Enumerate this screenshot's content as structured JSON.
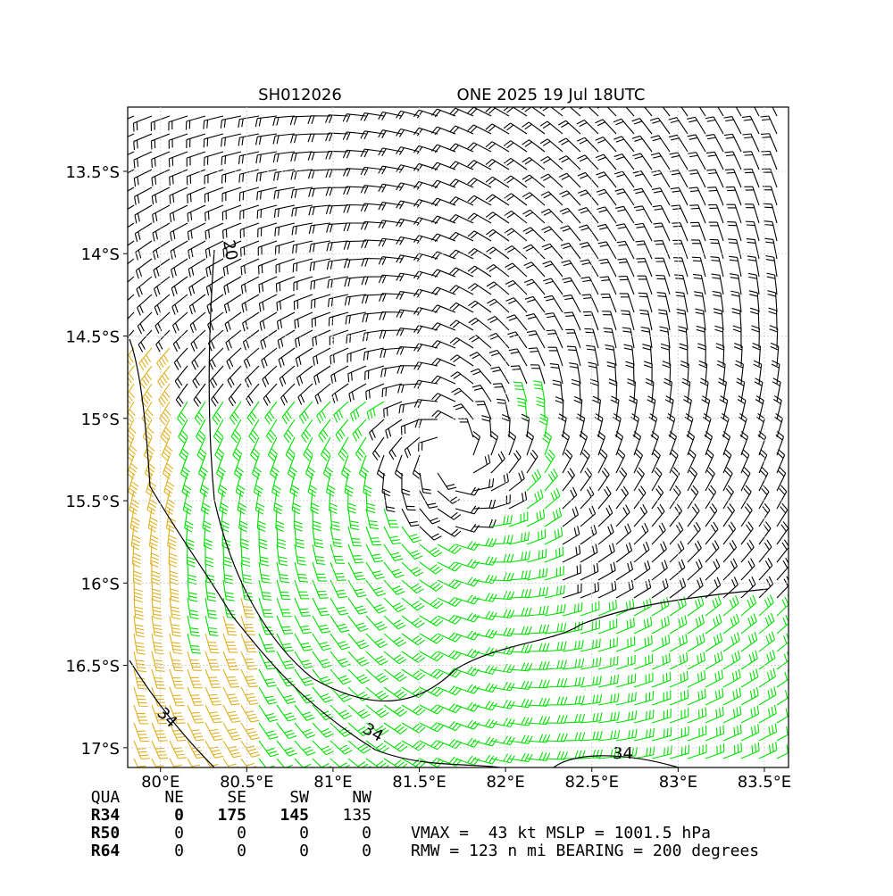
{
  "chart_data": {
    "type": "wind-barb-map",
    "title_left": "SH012026",
    "title_right": "ONE 2025 19 Jul 18UTC",
    "xlim": [
      79.81,
      83.64
    ],
    "ylim": [
      -17.12,
      -13.11
    ],
    "xticks": [
      {
        "value": 80,
        "label": "80°E"
      },
      {
        "value": 80.5,
        "label": "80.5°E"
      },
      {
        "value": 81,
        "label": "81°E"
      },
      {
        "value": 81.5,
        "label": "81.5°E"
      },
      {
        "value": 82,
        "label": "82°E"
      },
      {
        "value": 82.5,
        "label": "82.5°E"
      },
      {
        "value": 83,
        "label": "83°E"
      },
      {
        "value": 83.5,
        "label": "83.5°E"
      }
    ],
    "yticks": [
      {
        "value": -13.5,
        "label": "13.5°S"
      },
      {
        "value": -14,
        "label": "14°S"
      },
      {
        "value": -14.5,
        "label": "14.5°S"
      },
      {
        "value": -15,
        "label": "15°S"
      },
      {
        "value": -15.5,
        "label": "15.5°S"
      },
      {
        "value": -16,
        "label": "16°S"
      },
      {
        "value": -16.5,
        "label": "16.5°S"
      },
      {
        "value": -17,
        "label": "17°S"
      }
    ],
    "grid": true,
    "contour_labels": [
      "20",
      "34",
      "34",
      "34"
    ],
    "colors": {
      "weak": "#000000",
      "gale": "#00e000",
      "storm": "#e0b020"
    },
    "table": {
      "header": [
        "QUA",
        "NE",
        "SE",
        "SW",
        "NW"
      ],
      "rows": [
        [
          "R34",
          "0",
          "175",
          "145",
          "135"
        ],
        [
          "R50",
          "0",
          "0",
          "0",
          "0"
        ],
        [
          "R64",
          "0",
          "0",
          "0",
          "0"
        ]
      ]
    },
    "summary": [
      "VMAX =  43 kt MSLP = 1001.5 hPa",
      "RMW = 123 n mi BEARING = 200 degrees"
    ]
  }
}
